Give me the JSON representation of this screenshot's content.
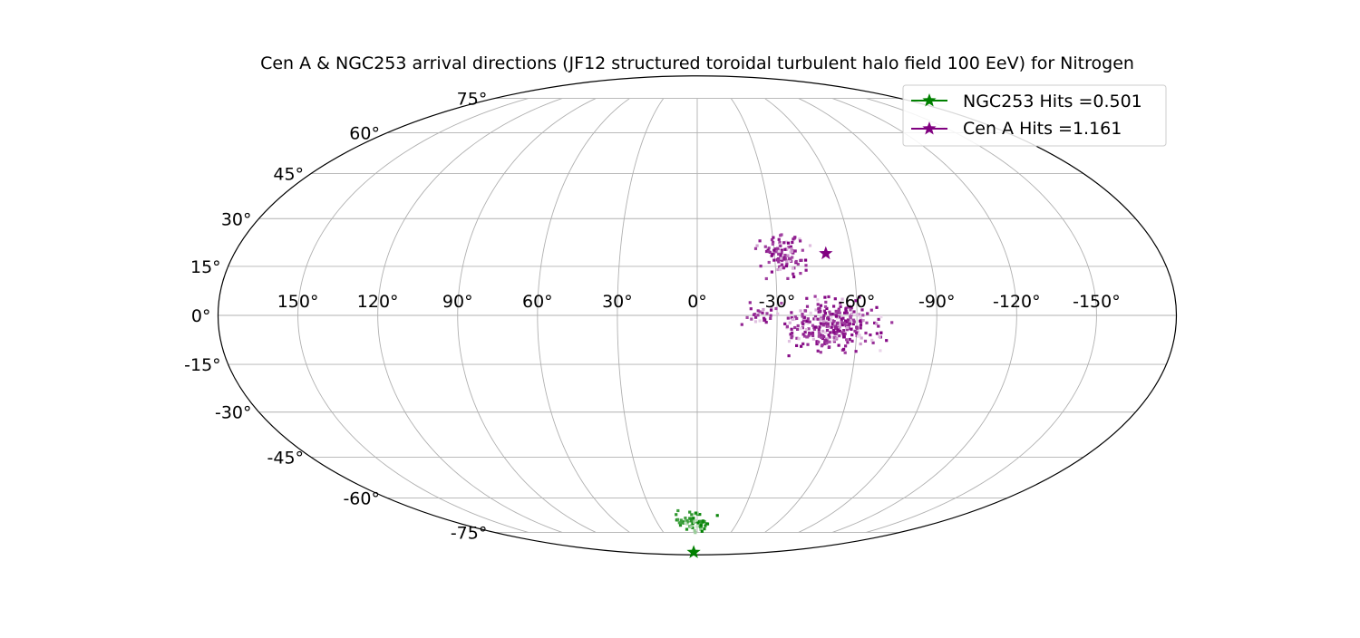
{
  "chart_data": {
    "type": "scatter",
    "projection": "mollweide",
    "title": "Cen A & NGC253 arrival directions (JF12 structured toroidal turbulent halo field 100 EeV) for Nitrogen",
    "lon_ticks": [
      150,
      120,
      90,
      60,
      30,
      0,
      -30,
      -60,
      -90,
      -120,
      -150
    ],
    "lon_tick_labels": [
      "150°",
      "120°",
      "90°",
      "60°",
      "30°",
      "0°",
      "-30°",
      "-60°",
      "-90°",
      "-120°",
      "-150°"
    ],
    "lat_ticks": [
      75,
      60,
      45,
      30,
      15,
      0,
      -15,
      -30,
      -45,
      -60,
      -75
    ],
    "lat_tick_labels": [
      "75°",
      "60°",
      "45°",
      "30°",
      "15°",
      "0°",
      "-15°",
      "-30°",
      "-45°",
      "-60°",
      "-75°"
    ],
    "grid": true,
    "legend_position": "top-right",
    "series": [
      {
        "name": "NGC253 Hits =0.501",
        "color": "#008000",
        "marker": "star",
        "source": {
          "lon": 9,
          "lat": -87
        },
        "clusters": [
          {
            "lon": 2,
            "lat": -70,
            "spread_lon": 10,
            "spread_lat": 3.5,
            "count": 70
          }
        ]
      },
      {
        "name": "Cen A Hits =1.161",
        "color": "#800080",
        "marker": "star",
        "source": {
          "lon": -50,
          "lat": 19
        },
        "clusters": [
          {
            "lon": -34,
            "lat": 18,
            "spread_lon": 7,
            "spread_lat": 5,
            "count": 110
          },
          {
            "lon": -50,
            "lat": -3,
            "spread_lon": 14,
            "spread_lat": 6,
            "count": 320
          },
          {
            "lon": -24,
            "lat": 0,
            "spread_lon": 6,
            "spread_lat": 2.5,
            "count": 25
          }
        ]
      }
    ]
  }
}
